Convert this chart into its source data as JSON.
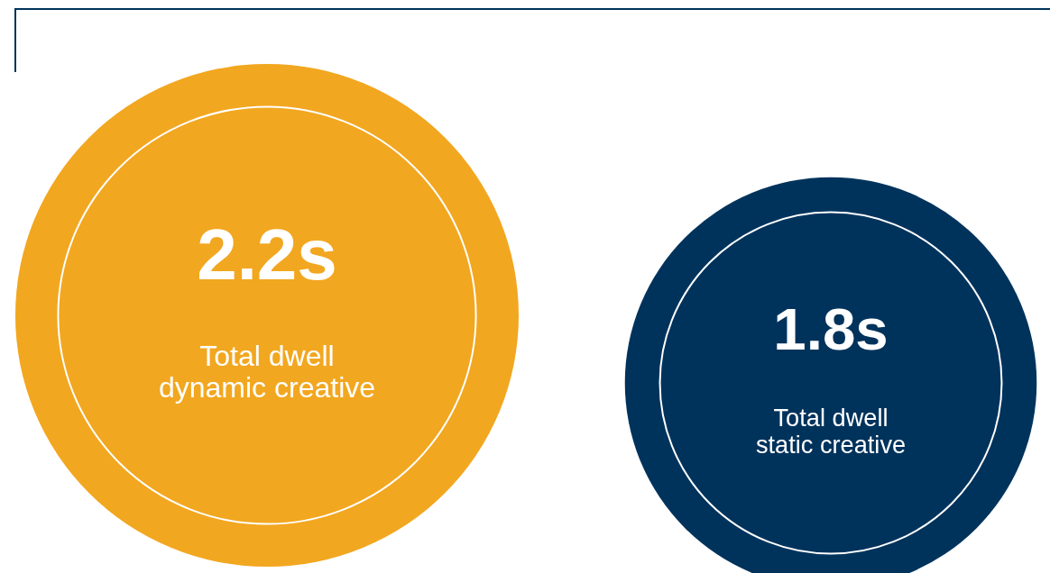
{
  "chart_data": {
    "type": "other",
    "categories": [
      "Total dwell dynamic creative",
      "Total dwell static creative"
    ],
    "values": [
      2.2,
      1.8
    ],
    "value_labels": [
      "2.2s",
      "1.8s"
    ],
    "colors": [
      "#f2a720",
      "#00335c"
    ]
  }
}
